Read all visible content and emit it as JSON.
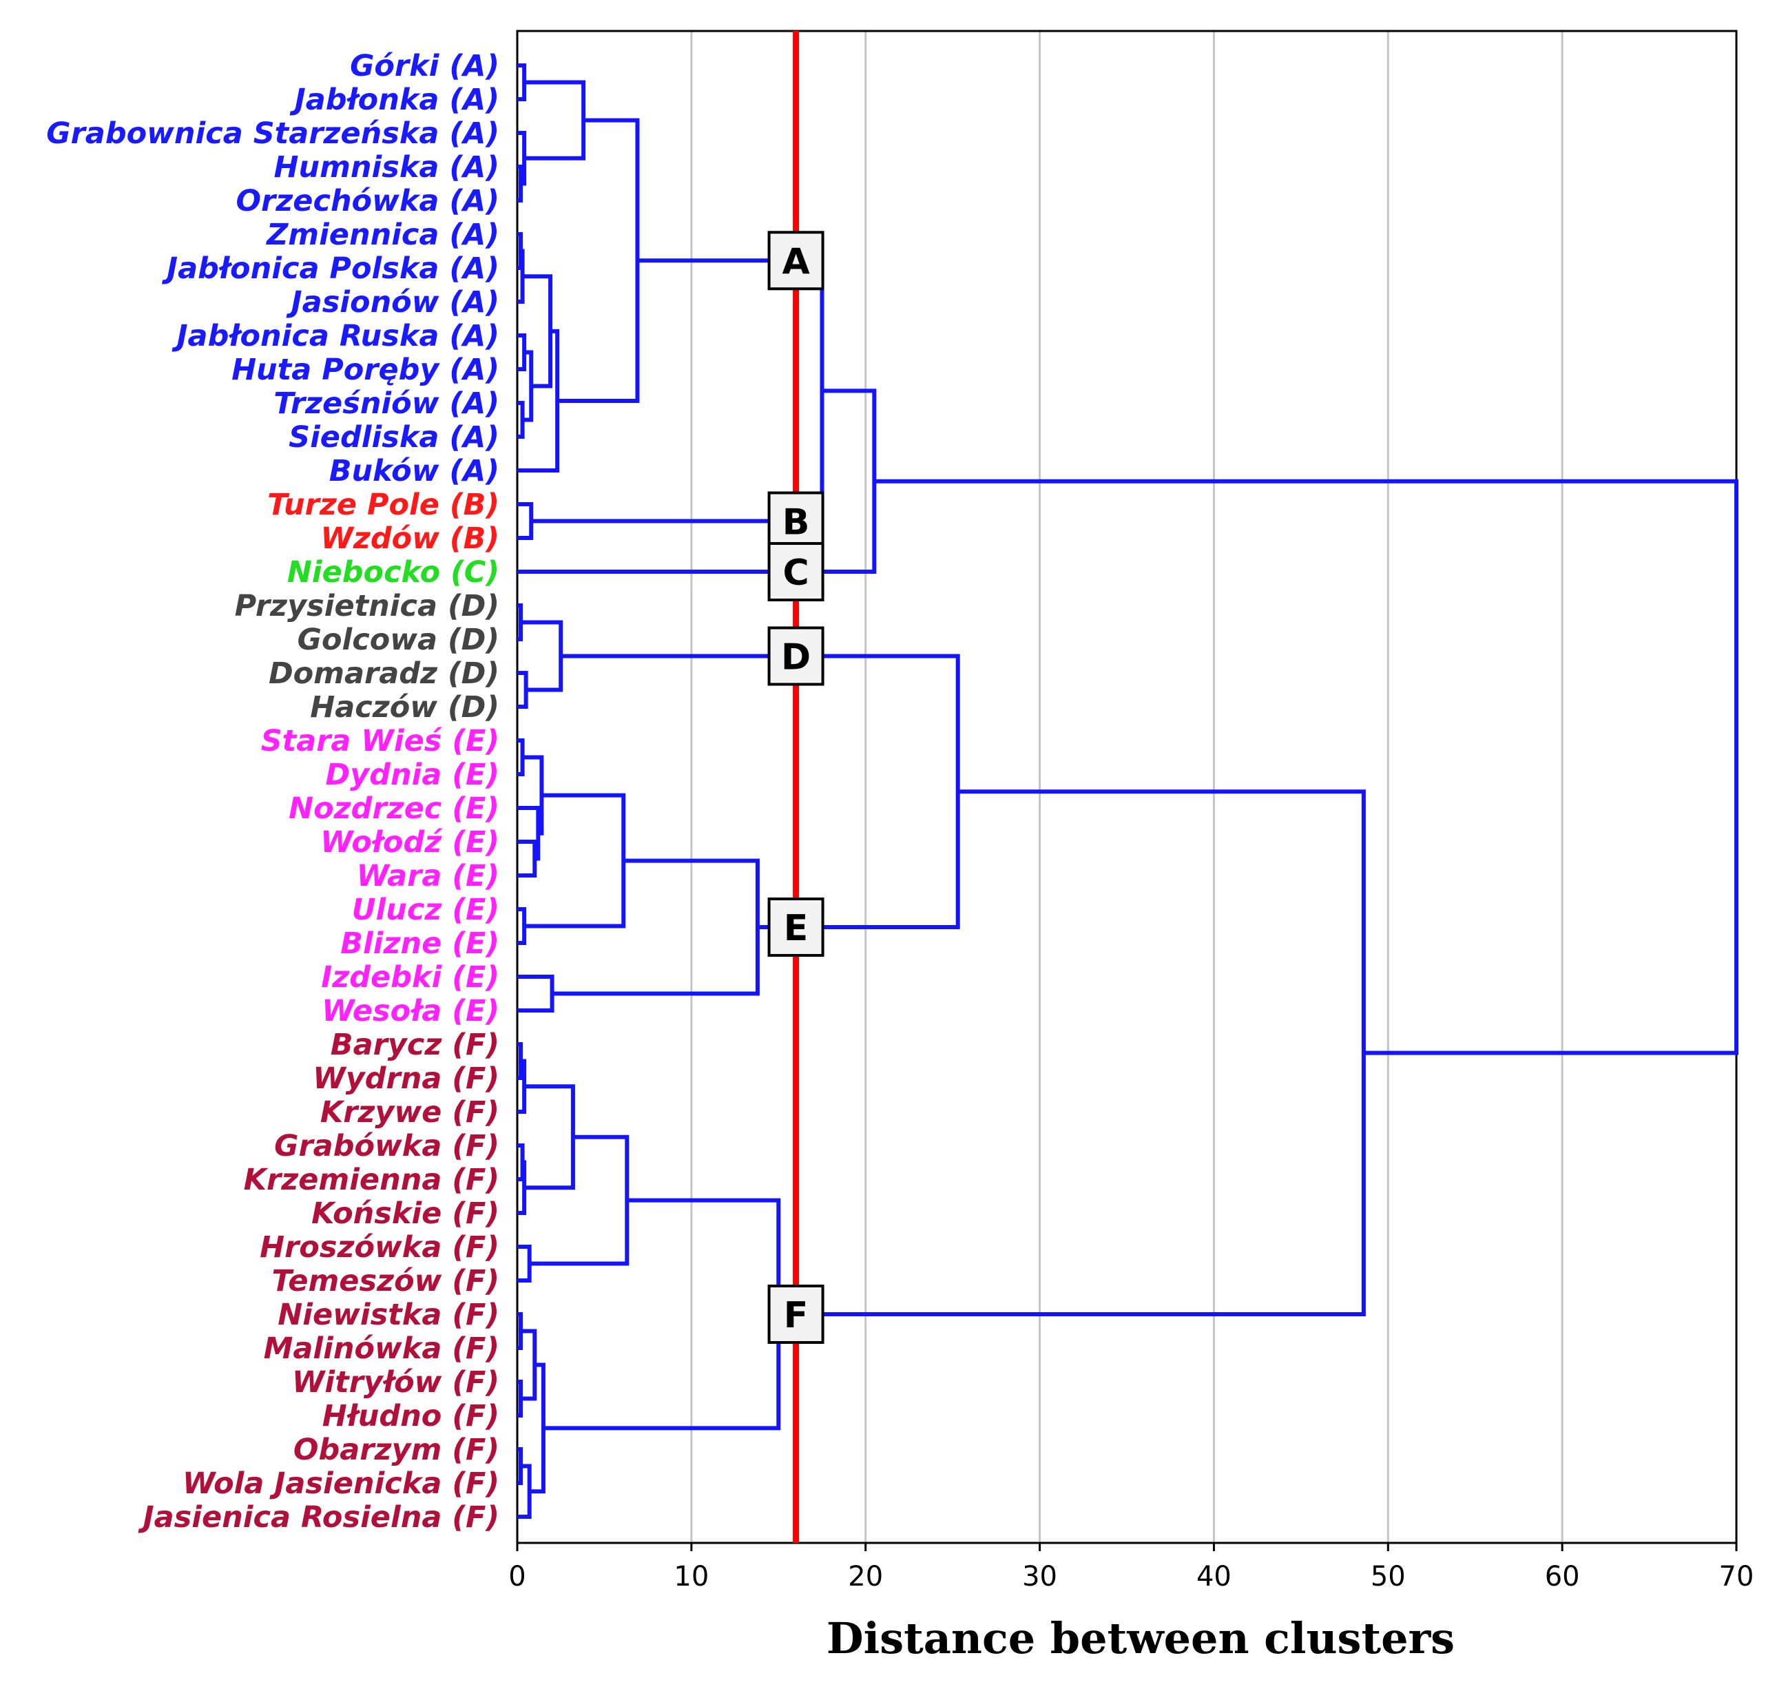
{
  "colors": {
    "A": "#1a1aff",
    "B": "#ff1a1a",
    "C": "#22dd22",
    "D": "#444444",
    "E": "#ff22ff",
    "F": "#b0103a",
    "link": "#1414ff",
    "cutoff": "#ff0000",
    "grid": "#c4c4c4"
  },
  "chart_data": {
    "type": "dendrogram",
    "title": "",
    "xlabel": "Distance between clusters",
    "xlim": [
      0,
      70
    ],
    "xticks": [
      "0",
      "10",
      "20",
      "30",
      "40",
      "50",
      "60",
      "70"
    ],
    "cutoff_distance": 16,
    "leaves": [
      {
        "label": "Górki (A)",
        "group": "A"
      },
      {
        "label": "Jabłonka (A)",
        "group": "A"
      },
      {
        "label": "Grabownica Starzeńska (A)",
        "group": "A"
      },
      {
        "label": "Humniska (A)",
        "group": "A"
      },
      {
        "label": "Orzechówka (A)",
        "group": "A"
      },
      {
        "label": "Zmiennica (A)",
        "group": "A"
      },
      {
        "label": "Jabłonica Polska (A)",
        "group": "A"
      },
      {
        "label": "Jasionów (A)",
        "group": "A"
      },
      {
        "label": "Jabłonica Ruska (A)",
        "group": "A"
      },
      {
        "label": "Huta Poręby (A)",
        "group": "A"
      },
      {
        "label": "Trześniów (A)",
        "group": "A"
      },
      {
        "label": "Siedliska (A)",
        "group": "A"
      },
      {
        "label": "Buków (A)",
        "group": "A"
      },
      {
        "label": "Turze Pole (B)",
        "group": "B"
      },
      {
        "label": "Wzdów (B)",
        "group": "B"
      },
      {
        "label": "Niebocko (C)",
        "group": "C"
      },
      {
        "label": "Przysietnica (D)",
        "group": "D"
      },
      {
        "label": "Golcowa (D)",
        "group": "D"
      },
      {
        "label": "Domaradz (D)",
        "group": "D"
      },
      {
        "label": "Haczów (D)",
        "group": "D"
      },
      {
        "label": "Stara Wieś (E)",
        "group": "E"
      },
      {
        "label": "Dydnia (E)",
        "group": "E"
      },
      {
        "label": "Nozdrzec (E)",
        "group": "E"
      },
      {
        "label": "Wołodź (E)",
        "group": "E"
      },
      {
        "label": "Wara (E)",
        "group": "E"
      },
      {
        "label": "Ulucz (E)",
        "group": "E"
      },
      {
        "label": "Blizne (E)",
        "group": "E"
      },
      {
        "label": "Izdebki (E)",
        "group": "E"
      },
      {
        "label": "Wesoła (E)",
        "group": "E"
      },
      {
        "label": "Barycz (F)",
        "group": "F"
      },
      {
        "label": "Wydrna (F)",
        "group": "F"
      },
      {
        "label": "Krzywe (F)",
        "group": "F"
      },
      {
        "label": "Grabówka (F)",
        "group": "F"
      },
      {
        "label": "Krzemienna (F)",
        "group": "F"
      },
      {
        "label": "Końskie (F)",
        "group": "F"
      },
      {
        "label": "Hroszówka (F)",
        "group": "F"
      },
      {
        "label": "Temeszów (F)",
        "group": "F"
      },
      {
        "label": "Niewistka (F)",
        "group": "F"
      },
      {
        "label": "Malinówka (F)",
        "group": "F"
      },
      {
        "label": "Witryłów (F)",
        "group": "F"
      },
      {
        "label": "Hłudno (F)",
        "group": "F"
      },
      {
        "label": "Obarzym (F)",
        "group": "F"
      },
      {
        "label": "Wola Jasienicka (F)",
        "group": "F"
      },
      {
        "label": "Jasienica Rosielna (F)",
        "group": "F"
      }
    ],
    "merges": [
      {
        "id": "a1",
        "left": 0,
        "right": 1,
        "distance": 0.4
      },
      {
        "id": "a2",
        "left": 3,
        "right": 4,
        "distance": 0.2
      },
      {
        "id": "a3",
        "left": 2,
        "right": "a2",
        "distance": 0.4
      },
      {
        "id": "a4",
        "left": "a1",
        "right": "a3",
        "distance": 3.8
      },
      {
        "id": "a5",
        "left": 5,
        "right": 6,
        "distance": 0.2
      },
      {
        "id": "a6",
        "left": "a5",
        "right": 7,
        "distance": 0.3
      },
      {
        "id": "a7",
        "left": 8,
        "right": 9,
        "distance": 0.4
      },
      {
        "id": "a8",
        "left": 10,
        "right": 11,
        "distance": 0.3
      },
      {
        "id": "a9",
        "left": "a7",
        "right": "a8",
        "distance": 0.8
      },
      {
        "id": "a10",
        "left": "a6",
        "right": "a9",
        "distance": 1.9
      },
      {
        "id": "a11",
        "left": "a10",
        "right": 12,
        "distance": 2.3
      },
      {
        "id": "A",
        "left": "a4",
        "right": "a11",
        "distance": 6.9
      },
      {
        "id": "B",
        "left": 13,
        "right": 14,
        "distance": 0.8
      },
      {
        "id": "AB",
        "left": "A",
        "right": "B",
        "distance": 17.5
      },
      {
        "id": "ABC",
        "left": "AB",
        "right": 15,
        "distance": 20.5
      },
      {
        "id": "d1",
        "left": 16,
        "right": 17,
        "distance": 0.2
      },
      {
        "id": "d2",
        "left": 18,
        "right": 19,
        "distance": 0.5
      },
      {
        "id": "D",
        "left": "d1",
        "right": "d2",
        "distance": 2.5
      },
      {
        "id": "e1",
        "left": 20,
        "right": 21,
        "distance": 0.3
      },
      {
        "id": "e2",
        "left": 23,
        "right": 24,
        "distance": 1.0
      },
      {
        "id": "e3",
        "left": 22,
        "right": "e2",
        "distance": 1.2
      },
      {
        "id": "e4",
        "left": "e1",
        "right": "e3",
        "distance": 1.4
      },
      {
        "id": "e5",
        "left": 25,
        "right": 26,
        "distance": 0.4
      },
      {
        "id": "e6",
        "left": "e4",
        "right": "e5",
        "distance": 6.1
      },
      {
        "id": "e7",
        "left": 27,
        "right": 28,
        "distance": 2.0
      },
      {
        "id": "E",
        "left": "e6",
        "right": "e7",
        "distance": 13.8
      },
      {
        "id": "DE",
        "left": "D",
        "right": "E",
        "distance": 25.3
      },
      {
        "id": "f1",
        "left": 29,
        "right": 30,
        "distance": 0.2
      },
      {
        "id": "f2",
        "left": "f1",
        "right": 31,
        "distance": 0.4
      },
      {
        "id": "f3",
        "left": 32,
        "right": 33,
        "distance": 0.3
      },
      {
        "id": "f4",
        "left": "f3",
        "right": 34,
        "distance": 0.4
      },
      {
        "id": "f5",
        "left": "f2",
        "right": "f4",
        "distance": 3.2
      },
      {
        "id": "f6",
        "left": 35,
        "right": 36,
        "distance": 0.7
      },
      {
        "id": "f7",
        "left": "f5",
        "right": "f6",
        "distance": 6.3
      },
      {
        "id": "f8",
        "left": 37,
        "right": 38,
        "distance": 0.2
      },
      {
        "id": "f9",
        "left": 39,
        "right": 40,
        "distance": 0.2
      },
      {
        "id": "f10",
        "left": "f8",
        "right": "f9",
        "distance": 1.0
      },
      {
        "id": "f11",
        "left": 41,
        "right": 42,
        "distance": 0.2
      },
      {
        "id": "f12",
        "left": "f11",
        "right": 43,
        "distance": 0.7
      },
      {
        "id": "f13",
        "left": "f10",
        "right": "f12",
        "distance": 1.5
      },
      {
        "id": "F",
        "left": "f7",
        "right": "f13",
        "distance": 15.0
      },
      {
        "id": "DEF",
        "left": "DE",
        "right": "F",
        "distance": 48.6
      },
      {
        "id": "root",
        "left": "ABC",
        "right": "DEF",
        "distance": 70.0
      }
    ],
    "cluster_labels": [
      {
        "label": "A",
        "node": "A"
      },
      {
        "label": "B",
        "node": "B"
      },
      {
        "label": "C",
        "leaf": 15
      },
      {
        "label": "D",
        "node": "D"
      },
      {
        "label": "E",
        "node": "E"
      },
      {
        "label": "F",
        "node": "F"
      }
    ]
  }
}
